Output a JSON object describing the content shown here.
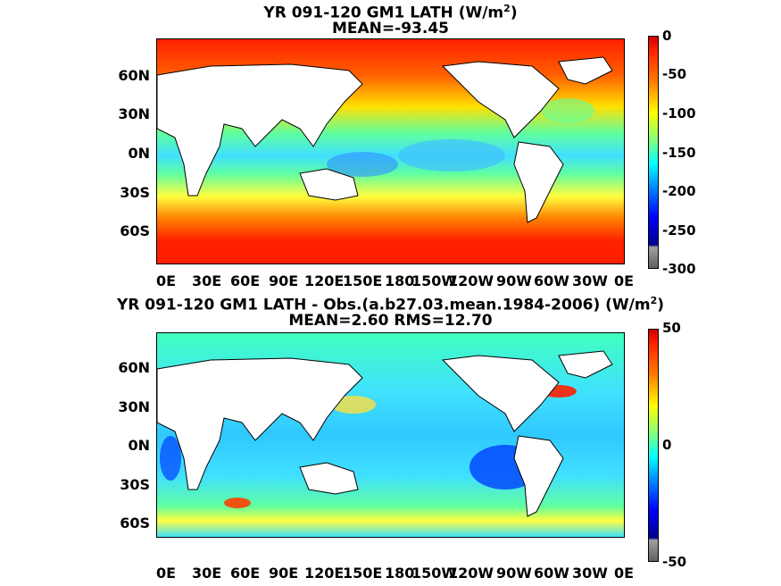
{
  "panel1": {
    "title_main": "YR 091-120 GM1  LATH (W/m",
    "title_sup": "2",
    "title_tail": ")",
    "subtitle": "MEAN=-93.45",
    "colorbar_ticks": [
      "0",
      "-50",
      "-100",
      "-150",
      "-200",
      "-250",
      "-300"
    ]
  },
  "panel2": {
    "title_main": "YR 091-120 GM1 LATH - Obs.(a.b27.03.mean.1984-2006) (W/m",
    "title_sup": "2",
    "title_tail": ")",
    "subtitle": "MEAN=2.60 RMS=12.70",
    "colorbar_ticks": [
      "50",
      "0",
      "-50"
    ]
  },
  "lat_labels": [
    "60N",
    "30N",
    "0N",
    "30S",
    "60S"
  ],
  "lon_labels": [
    "0E",
    "30E",
    "60E",
    "90E",
    "120E",
    "150E",
    "180",
    "150W",
    "120W",
    "90W",
    "60W",
    "30W",
    "0E"
  ],
  "colors": {
    "jet": [
      "#00008f",
      "#0000ff",
      "#0080ff",
      "#00ffff",
      "#80ff80",
      "#ffff00",
      "#ff8000",
      "#ff0000",
      "#800000"
    ],
    "land": "#ffffff",
    "missing": "#808080"
  }
}
